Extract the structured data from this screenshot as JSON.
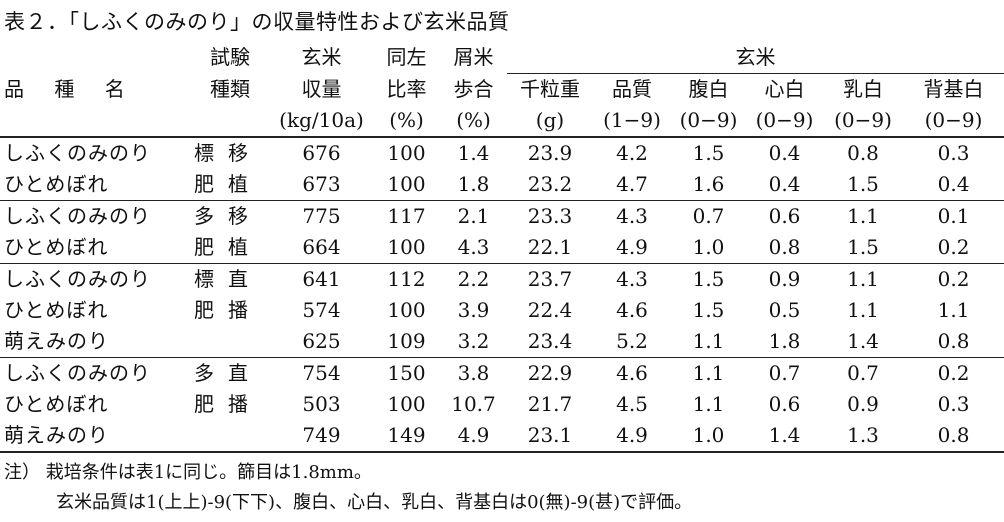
{
  "title": "表２．「しふくのみのり」の収量特性および玄米品質",
  "header": {
    "name": "品 種 名",
    "trial_1": "試験",
    "trial_2": "種類",
    "yield_1": "玄米",
    "yield_2": "収量",
    "yield_3": "(kg/10a)",
    "ratio_1": "同左",
    "ratio_2": "比率",
    "ratio_3": "(%)",
    "waste_1": "屑米",
    "waste_2": "歩合",
    "waste_3": "(%)",
    "brown_group": "玄米",
    "kernel": "千粒重",
    "kernel_unit": "(g)",
    "quality": "品質",
    "quality_unit": "(1−9)",
    "belly": "腹白",
    "belly_unit": "(0−9)",
    "heart": "心白",
    "heart_unit": "(0−9)",
    "milky": "乳白",
    "milky_unit": "(0−9)",
    "back": "背基白",
    "back_unit": "(0−9)"
  },
  "rows": [
    {
      "name": "しふくのみのり",
      "trt": "標移",
      "yield": "676",
      "ratio": "100",
      "waste": "1.4",
      "kernel": "23.9",
      "quality": "4.2",
      "belly": "1.5",
      "heart": "0.4",
      "milky": "0.8",
      "back": "0.3"
    },
    {
      "name": "ひとめぼれ",
      "trt": "肥植",
      "yield": "673",
      "ratio": "100",
      "waste": "1.8",
      "kernel": "23.2",
      "quality": "4.7",
      "belly": "1.6",
      "heart": "0.4",
      "milky": "1.5",
      "back": "0.4"
    },
    {
      "name": "しふくのみのり",
      "trt": "多移",
      "yield": "775",
      "ratio": "117",
      "waste": "2.1",
      "kernel": "23.3",
      "quality": "4.3",
      "belly": "0.7",
      "heart": "0.6",
      "milky": "1.1",
      "back": "0.1"
    },
    {
      "name": "ひとめぼれ",
      "trt": "肥植",
      "yield": "664",
      "ratio": "100",
      "waste": "4.3",
      "kernel": "22.1",
      "quality": "4.9",
      "belly": "1.0",
      "heart": "0.8",
      "milky": "1.5",
      "back": "0.2"
    },
    {
      "name": "しふくのみのり",
      "trt": "標直",
      "yield": "641",
      "ratio": "112",
      "waste": "2.2",
      "kernel": "23.7",
      "quality": "4.3",
      "belly": "1.5",
      "heart": "0.9",
      "milky": "1.1",
      "back": "0.2"
    },
    {
      "name": "ひとめぼれ",
      "trt": "肥播",
      "yield": "574",
      "ratio": "100",
      "waste": "3.9",
      "kernel": "22.4",
      "quality": "4.6",
      "belly": "1.5",
      "heart": "0.5",
      "milky": "1.1",
      "back": "1.1"
    },
    {
      "name": "萌えみのり",
      "trt": "",
      "yield": "625",
      "ratio": "109",
      "waste": "3.2",
      "kernel": "23.4",
      "quality": "5.2",
      "belly": "1.1",
      "heart": "1.8",
      "milky": "1.4",
      "back": "0.8"
    },
    {
      "name": "しふくのみのり",
      "trt": "多直",
      "yield": "754",
      "ratio": "150",
      "waste": "3.8",
      "kernel": "22.9",
      "quality": "4.6",
      "belly": "1.1",
      "heart": "0.7",
      "milky": "0.7",
      "back": "0.2"
    },
    {
      "name": "ひとめぼれ",
      "trt": "肥播",
      "yield": "503",
      "ratio": "100",
      "waste": "10.7",
      "kernel": "21.7",
      "quality": "4.5",
      "belly": "1.1",
      "heart": "0.6",
      "milky": "0.9",
      "back": "0.3"
    },
    {
      "name": "萌えみのり",
      "trt": "",
      "yield": "749",
      "ratio": "149",
      "waste": "4.9",
      "kernel": "23.1",
      "quality": "4.9",
      "belly": "1.0",
      "heart": "1.4",
      "milky": "1.3",
      "back": "0.8"
    }
  ],
  "notes": {
    "line1": "注） 栽培条件は表1に同じ。篩目は1.8mm。",
    "line2": "玄米品質は1(上上)-9(下下)、腹白、心白、乳白、背基白は0(無)-9(甚)で評価。"
  }
}
